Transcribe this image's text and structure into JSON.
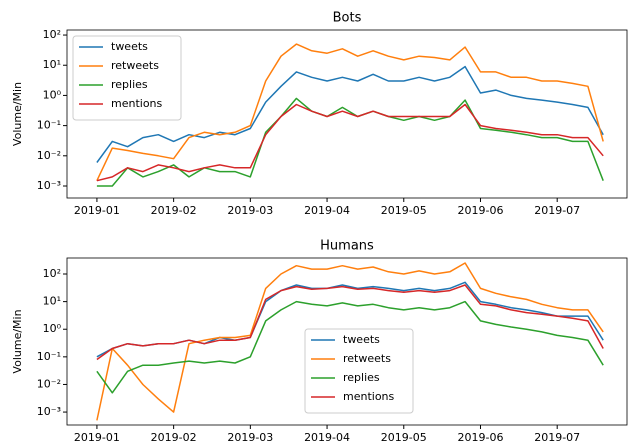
{
  "chart_data": [
    {
      "type": "line",
      "title": "Bots",
      "ylabel": "Volume/Min",
      "yscale": "log",
      "legend": "upper left",
      "xlim": [
        0.61,
        7.91
      ],
      "xticks": [
        {
          "value": 1,
          "label": "2019-01"
        },
        {
          "value": 2,
          "label": "2019-02"
        },
        {
          "value": 3,
          "label": "2019-03"
        },
        {
          "value": 4,
          "label": "2019-04"
        },
        {
          "value": 5,
          "label": "2019-05"
        },
        {
          "value": 6,
          "label": "2019-06"
        },
        {
          "value": 7,
          "label": "2019-07"
        }
      ],
      "ylim": [
        0.0004,
        147
      ],
      "yticks": [
        {
          "value": 100,
          "label": "10²"
        },
        {
          "value": 10,
          "label": "10¹"
        },
        {
          "value": 1,
          "label": "10⁰"
        },
        {
          "value": 0.1,
          "label": "10⁻¹"
        },
        {
          "value": 0.01,
          "label": "10⁻²"
        },
        {
          "value": 0.001,
          "label": "10⁻³"
        }
      ],
      "x": [
        1.0,
        1.2,
        1.4,
        1.6,
        1.8,
        2.0,
        2.2,
        2.4,
        2.6,
        2.8,
        3.0,
        3.2,
        3.4,
        3.6,
        3.8,
        4.0,
        4.2,
        4.4,
        4.6,
        4.8,
        5.0,
        5.2,
        5.4,
        5.6,
        5.8,
        6.0,
        6.2,
        6.4,
        6.6,
        6.8,
        7.0,
        7.2,
        7.4,
        7.6
      ],
      "series": [
        {
          "name": "tweets",
          "color": "#1f77b4",
          "values": [
            0.006,
            0.03,
            0.02,
            0.04,
            0.05,
            0.03,
            0.05,
            0.04,
            0.06,
            0.05,
            0.08,
            0.6,
            2,
            6,
            4,
            3,
            4,
            3,
            5,
            3,
            3,
            4,
            3,
            4,
            9,
            1.2,
            1.5,
            1,
            0.8,
            0.7,
            0.6,
            0.5,
            0.4,
            0.05
          ]
        },
        {
          "name": "retweets",
          "color": "#ff7f0e",
          "values": [
            0.0015,
            0.018,
            0.015,
            0.012,
            0.01,
            0.008,
            0.04,
            0.06,
            0.05,
            0.06,
            0.1,
            3,
            20,
            50,
            30,
            25,
            35,
            20,
            30,
            20,
            15,
            20,
            18,
            15,
            40,
            6,
            6,
            4,
            4,
            3,
            3,
            2.5,
            2,
            0.03
          ]
        },
        {
          "name": "replies",
          "color": "#2ca02c",
          "values": [
            0.001,
            0.001,
            0.004,
            0.002,
            0.003,
            0.005,
            0.002,
            0.004,
            0.003,
            0.003,
            0.002,
            0.06,
            0.2,
            0.8,
            0.3,
            0.2,
            0.4,
            0.2,
            0.3,
            0.2,
            0.15,
            0.2,
            0.15,
            0.2,
            0.7,
            0.08,
            0.07,
            0.06,
            0.05,
            0.04,
            0.04,
            0.03,
            0.03,
            0.0015
          ]
        },
        {
          "name": "mentions",
          "color": "#d62728",
          "values": [
            0.0015,
            0.002,
            0.004,
            0.003,
            0.005,
            0.004,
            0.003,
            0.004,
            0.005,
            0.004,
            0.004,
            0.05,
            0.2,
            0.5,
            0.3,
            0.2,
            0.3,
            0.2,
            0.3,
            0.2,
            0.2,
            0.2,
            0.2,
            0.2,
            0.5,
            0.1,
            0.08,
            0.07,
            0.06,
            0.05,
            0.05,
            0.04,
            0.04,
            0.01
          ]
        }
      ]
    },
    {
      "type": "line",
      "title": "Humans",
      "ylabel": "Volume/Min",
      "yscale": "log",
      "legend": "lower center",
      "xlim": [
        0.61,
        7.91
      ],
      "xticks": [
        {
          "value": 1,
          "label": "2019-01"
        },
        {
          "value": 2,
          "label": "2019-02"
        },
        {
          "value": 3,
          "label": "2019-03"
        },
        {
          "value": 4,
          "label": "2019-04"
        },
        {
          "value": 5,
          "label": "2019-05"
        },
        {
          "value": 6,
          "label": "2019-06"
        },
        {
          "value": 7,
          "label": "2019-07"
        }
      ],
      "ylim": [
        0.00034,
        380
      ],
      "yticks": [
        {
          "value": 100,
          "label": "10²"
        },
        {
          "value": 10,
          "label": "10¹"
        },
        {
          "value": 1,
          "label": "10⁰"
        },
        {
          "value": 0.1,
          "label": "10⁻¹"
        },
        {
          "value": 0.01,
          "label": "10⁻²"
        },
        {
          "value": 0.001,
          "label": "10⁻³"
        }
      ],
      "x": [
        1.0,
        1.2,
        1.4,
        1.6,
        1.8,
        2.0,
        2.2,
        2.4,
        2.6,
        2.8,
        3.0,
        3.2,
        3.4,
        3.6,
        3.8,
        4.0,
        4.2,
        4.4,
        4.6,
        4.8,
        5.0,
        5.2,
        5.4,
        5.6,
        5.8,
        6.0,
        6.2,
        6.4,
        6.6,
        6.8,
        7.0,
        7.2,
        7.4,
        7.6
      ],
      "series": [
        {
          "name": "tweets",
          "color": "#1f77b4",
          "values": [
            0.1,
            0.2,
            0.3,
            0.25,
            0.3,
            0.3,
            0.4,
            0.3,
            0.5,
            0.4,
            0.5,
            10,
            25,
            40,
            30,
            30,
            40,
            30,
            35,
            30,
            25,
            30,
            25,
            30,
            50,
            10,
            8,
            6,
            5,
            4,
            3,
            3,
            3,
            0.4
          ]
        },
        {
          "name": "retweets",
          "color": "#ff7f0e",
          "values": [
            0.0005,
            0.2,
            0.05,
            0.01,
            0.003,
            0.001,
            0.3,
            0.4,
            0.5,
            0.5,
            0.6,
            30,
            100,
            200,
            150,
            150,
            200,
            150,
            180,
            120,
            100,
            130,
            100,
            120,
            250,
            30,
            20,
            15,
            12,
            8,
            6,
            5,
            5,
            0.8
          ]
        },
        {
          "name": "replies",
          "color": "#2ca02c",
          "values": [
            0.03,
            0.005,
            0.03,
            0.05,
            0.05,
            0.06,
            0.07,
            0.06,
            0.07,
            0.06,
            0.1,
            2,
            5,
            10,
            8,
            7,
            9,
            7,
            8,
            6,
            5,
            6,
            5,
            6,
            10,
            2,
            1.5,
            1.2,
            1,
            0.8,
            0.6,
            0.5,
            0.4,
            0.05
          ]
        },
        {
          "name": "mentions",
          "color": "#d62728",
          "values": [
            0.08,
            0.2,
            0.3,
            0.25,
            0.3,
            0.3,
            0.4,
            0.3,
            0.4,
            0.4,
            0.5,
            12,
            25,
            35,
            28,
            30,
            35,
            28,
            30,
            25,
            22,
            25,
            22,
            25,
            40,
            8,
            7,
            5,
            4,
            3.5,
            3,
            2.5,
            2,
            0.2
          ]
        }
      ]
    }
  ]
}
